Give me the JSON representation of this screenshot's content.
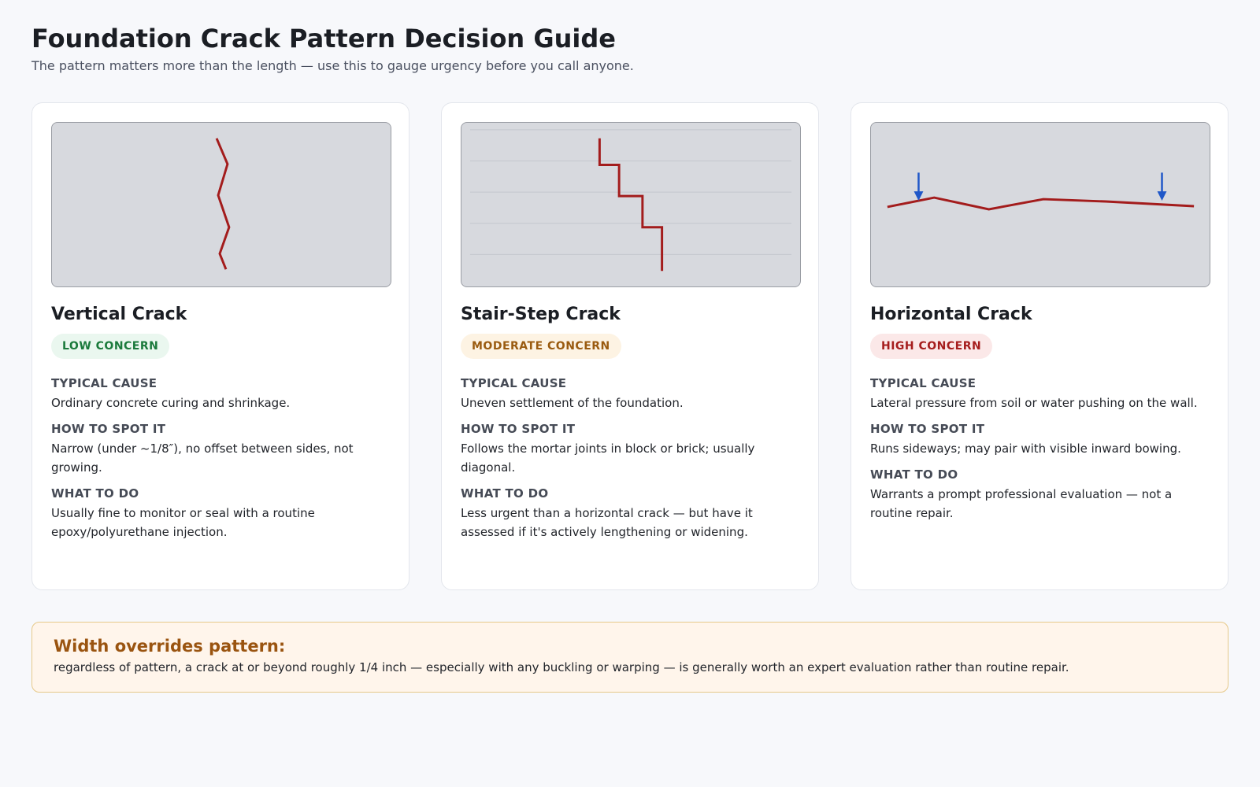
{
  "header": {
    "title": "Foundation Crack Pattern Decision Guide",
    "subtitle": "The pattern matters more than the length — use this to gauge urgency before you call anyone."
  },
  "colors": {
    "crack": "#a31c1c",
    "arrow": "#1f57c8",
    "low": "#1b7a3c",
    "moderate": "#9a5b10",
    "high": "#a51d1d"
  },
  "cards": [
    {
      "title": "Vertical Crack",
      "badge": "LOW CONCERN",
      "illustration_icon": "vertical-crack-icon",
      "sections": [
        {
          "label": "TYPICAL CAUSE",
          "text": "Ordinary concrete curing and shrinkage."
        },
        {
          "label": "HOW TO SPOT IT",
          "text": "Narrow (under ~1/8″), no offset between sides, not growing."
        },
        {
          "label": "WHAT TO DO",
          "text": "Usually fine to monitor or seal with a routine epoxy/polyurethane injection."
        }
      ]
    },
    {
      "title": "Stair-Step Crack",
      "badge": "MODERATE CONCERN",
      "illustration_icon": "stair-step-crack-icon",
      "sections": [
        {
          "label": "TYPICAL CAUSE",
          "text": "Uneven settlement of the foundation."
        },
        {
          "label": "HOW TO SPOT IT",
          "text": "Follows the mortar joints in block or brick; usually diagonal."
        },
        {
          "label": "WHAT TO DO",
          "text": "Less urgent than a horizontal crack — but have it assessed if it's actively lengthening or widening."
        }
      ]
    },
    {
      "title": "Horizontal Crack",
      "badge": "HIGH CONCERN",
      "illustration_icon": "horizontal-crack-icon",
      "sections": [
        {
          "label": "TYPICAL CAUSE",
          "text": "Lateral pressure from soil or water pushing on the wall."
        },
        {
          "label": "HOW TO SPOT IT",
          "text": "Runs sideways; may pair with visible inward bowing."
        },
        {
          "label": "WHAT TO DO",
          "text": "Warrants a prompt professional evaluation — not a routine repair."
        }
      ]
    }
  ],
  "callout": {
    "title": "Width overrides pattern:",
    "text": "regardless of pattern, a crack at or beyond roughly 1/4 inch — especially with any buckling or warping — is generally worth an expert evaluation rather than routine repair."
  }
}
